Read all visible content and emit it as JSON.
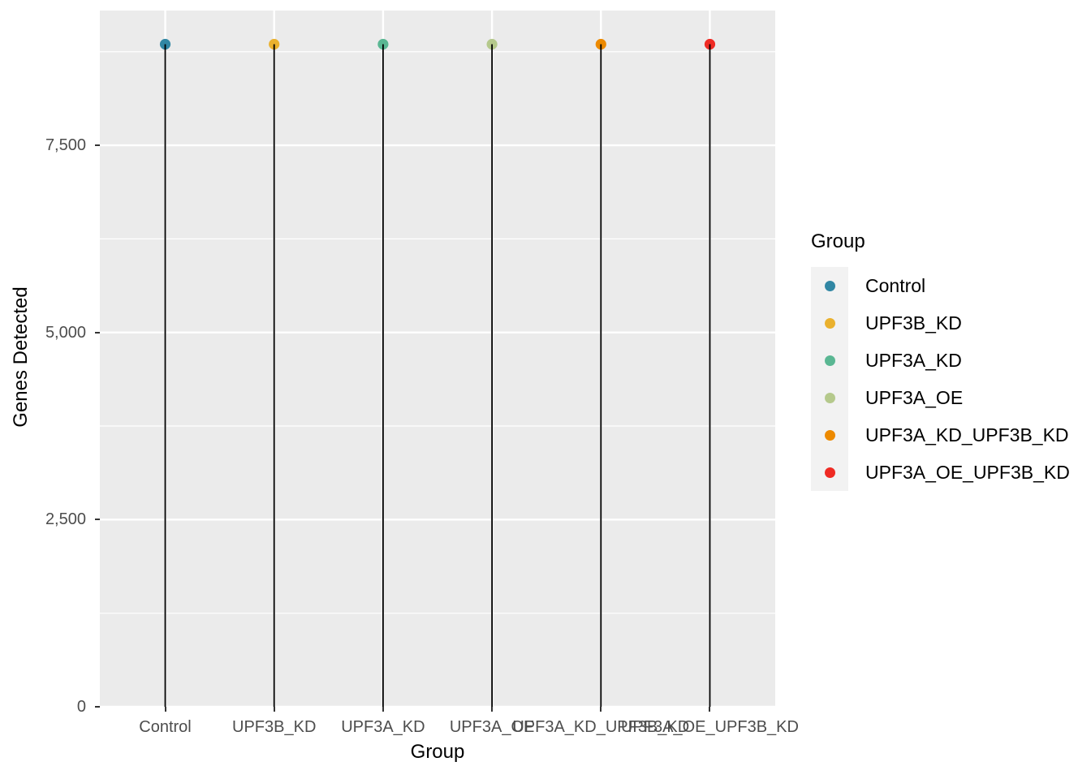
{
  "chart_data": {
    "type": "lollipop",
    "title": "",
    "xlabel": "Group",
    "ylabel": "Genes Detected",
    "categories": [
      "Control",
      "UPF3B_KD",
      "UPF3A_KD",
      "UPF3A_OE",
      "UPF3A_KD_UPF3B_KD",
      "UPF3A_OE_UPF3B_KD"
    ],
    "values": [
      8850,
      8850,
      8850,
      8850,
      8850,
      8850
    ],
    "point_colors": [
      "#3187a4",
      "#eab12e",
      "#5ab793",
      "#b5c98c",
      "#ed8a00",
      "#ef2b24"
    ],
    "stem_color": "#000000",
    "ylim": [
      0,
      9300
    ],
    "yticks": [
      {
        "value": 0,
        "label": "0"
      },
      {
        "value": 2500,
        "label": "2,500"
      },
      {
        "value": 5000,
        "label": "5,000"
      },
      {
        "value": 7500,
        "label": "7,500"
      }
    ],
    "y_minor": [
      1250,
      3750,
      6250,
      8750
    ],
    "grid": "major+minor on, white on gray panel",
    "legend_position": "right",
    "legend": {
      "title": "Group",
      "entries": [
        {
          "label": "Control",
          "color": "#3187a4"
        },
        {
          "label": "UPF3B_KD",
          "color": "#eab12e"
        },
        {
          "label": "UPF3A_KD",
          "color": "#5ab793"
        },
        {
          "label": "UPF3A_OE",
          "color": "#b5c98c"
        },
        {
          "label": "UPF3A_KD_UPF3B_KD",
          "color": "#ed8a00"
        },
        {
          "label": "UPF3A_OE_UPF3B_KD",
          "color": "#ef2b24"
        }
      ]
    },
    "colors": {
      "panel_bg": "#ebebeb",
      "grid": "#ffffff",
      "tick_label": "#4d4d4d",
      "tick_mark": "#333333",
      "axis_title": "#000000",
      "legend_key_bg": "#f2f2f2"
    }
  }
}
